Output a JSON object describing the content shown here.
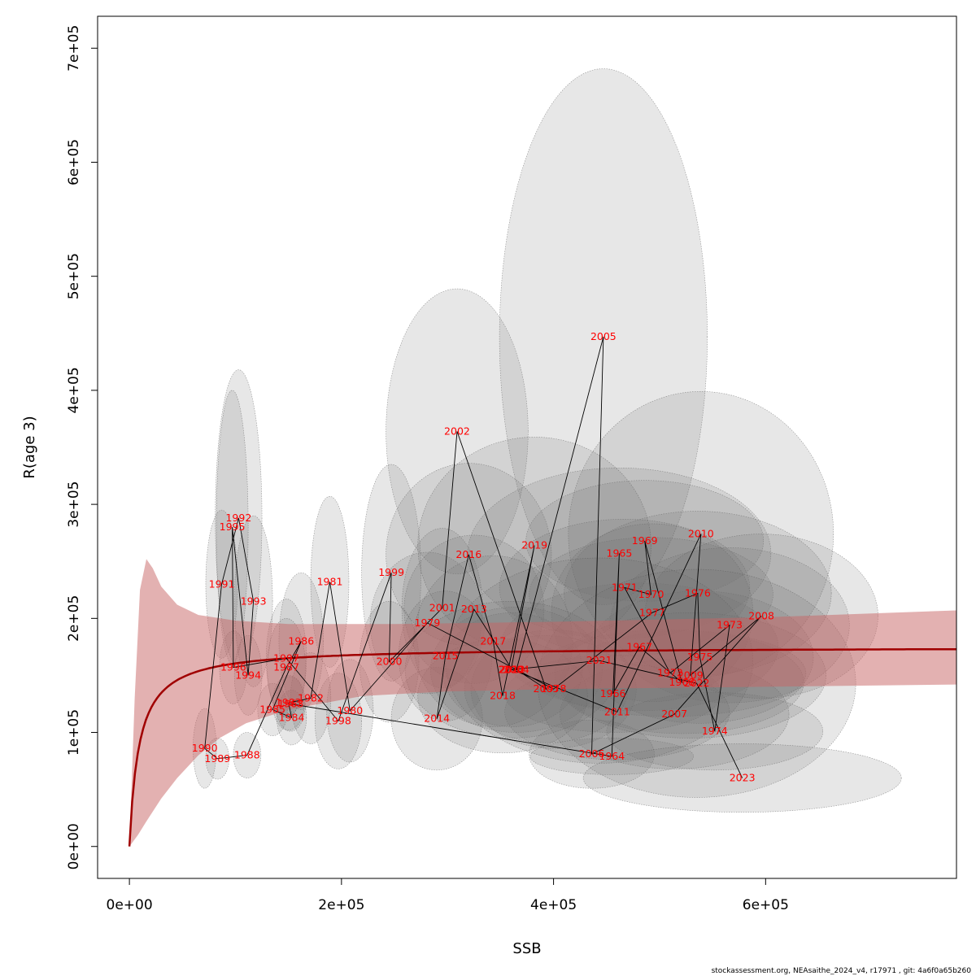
{
  "chart_data": {
    "type": "scatter",
    "title": "",
    "xlabel": "SSB",
    "ylabel": "R(age 3)",
    "xlim": [
      -30000,
      780000
    ],
    "ylim": [
      -28000,
      728000
    ],
    "x_ticks": [
      0,
      200000,
      400000,
      600000
    ],
    "x_tick_labels": [
      "0e+00",
      "2e+05",
      "4e+05",
      "6e+05"
    ],
    "y_ticks": [
      0,
      100000,
      200000,
      300000,
      400000,
      500000,
      600000,
      700000
    ],
    "y_tick_labels": [
      "0e+00",
      "1e+05",
      "2e+05",
      "3e+05",
      "4e+05",
      "5e+05",
      "6e+05",
      "7e+05"
    ],
    "grid": false,
    "colors": {
      "label": "#ff0000",
      "fit_line": "#a00000",
      "fit_band": "#c86464",
      "ellipse_fill": "#6e6e6e",
      "path": "#000000"
    },
    "points": [
      {
        "year": 1963,
        "ssb": 152000,
        "r": 125000,
        "sx": 14000,
        "sy": 24000
      },
      {
        "year": 1964,
        "ssb": 455000,
        "r": 79000,
        "sx": 77000,
        "sy": 16000
      },
      {
        "year": 1965,
        "ssb": 462000,
        "r": 257000,
        "sx": 143000,
        "sy": 75000
      },
      {
        "year": 1966,
        "ssb": 456000,
        "r": 134000,
        "sx": 102000,
        "sy": 34000
      },
      {
        "year": 1967,
        "ssb": 481000,
        "r": 175000,
        "sx": 131000,
        "sy": 56000
      },
      {
        "year": 1968,
        "ssb": 521000,
        "r": 144000,
        "sx": 115000,
        "sy": 45000
      },
      {
        "year": 1969,
        "ssb": 486000,
        "r": 268000,
        "sx": 112000,
        "sy": 53000
      },
      {
        "year": 1970,
        "ssb": 492000,
        "r": 221000,
        "sx": 115000,
        "sy": 50000
      },
      {
        "year": 1971,
        "ssb": 467000,
        "r": 227000,
        "sx": 118000,
        "sy": 60000
      },
      {
        "year": 1972,
        "ssb": 510000,
        "r": 152000,
        "sx": 128000,
        "sy": 38000
      },
      {
        "year": 1973,
        "ssb": 566000,
        "r": 194000,
        "sx": 113000,
        "sy": 68000
      },
      {
        "year": 1974,
        "ssb": 552000,
        "r": 101000,
        "sx": 102000,
        "sy": 34000
      },
      {
        "year": 1975,
        "ssb": 538000,
        "r": 166000,
        "sx": 107000,
        "sy": 58000
      },
      {
        "year": 1976,
        "ssb": 536000,
        "r": 222000,
        "sx": 126000,
        "sy": 72000
      },
      {
        "year": 1977,
        "ssb": 493000,
        "r": 205000,
        "sx": 95000,
        "sy": 78000
      },
      {
        "year": 1978,
        "ssb": 400000,
        "r": 138000,
        "sx": 78000,
        "sy": 52000
      },
      {
        "year": 1979,
        "ssb": 281000,
        "r": 196000,
        "sx": 54000,
        "sy": 62000
      },
      {
        "year": 1980,
        "ssb": 208000,
        "r": 119000,
        "sx": 22000,
        "sy": 45000
      },
      {
        "year": 1981,
        "ssb": 189000,
        "r": 232000,
        "sx": 18000,
        "sy": 75000
      },
      {
        "year": 1982,
        "ssb": 171000,
        "r": 130000,
        "sx": 19000,
        "sy": 40000
      },
      {
        "year": 1983,
        "ssb": 150000,
        "r": 126000,
        "sx": 15000,
        "sy": 24000
      },
      {
        "year": 1984,
        "ssb": 153000,
        "r": 113000,
        "sx": 14000,
        "sy": 24000
      },
      {
        "year": 1985,
        "ssb": 135000,
        "r": 120000,
        "sx": 14000,
        "sy": 23000
      },
      {
        "year": 1986,
        "ssb": 162000,
        "r": 180000,
        "sx": 21000,
        "sy": 60000
      },
      {
        "year": 1987,
        "ssb": 148000,
        "r": 157000,
        "sx": 18000,
        "sy": 43000
      },
      {
        "year": 1988,
        "ssb": 111000,
        "r": 80000,
        "sx": 13000,
        "sy": 20000
      },
      {
        "year": 1989,
        "ssb": 83000,
        "r": 77000,
        "sx": 11000,
        "sy": 18000
      },
      {
        "year": 1990,
        "ssb": 71000,
        "r": 86000,
        "sx": 11000,
        "sy": 35000
      },
      {
        "year": 1991,
        "ssb": 87000,
        "r": 230000,
        "sx": 15000,
        "sy": 65000
      },
      {
        "year": 1992,
        "ssb": 103000,
        "r": 288000,
        "sx": 22000,
        "sy": 130000
      },
      {
        "year": 1993,
        "ssb": 117000,
        "r": 215000,
        "sx": 18000,
        "sy": 75000
      },
      {
        "year": 1994,
        "ssb": 112000,
        "r": 150000,
        "sx": 13000,
        "sy": 35000
      },
      {
        "year": 1995,
        "ssb": 97000,
        "r": 280000,
        "sx": 15000,
        "sy": 120000
      },
      {
        "year": 1996,
        "ssb": 98000,
        "r": 157000,
        "sx": 13000,
        "sy": 32000
      },
      {
        "year": 1997,
        "ssb": 148000,
        "r": 165000,
        "sx": 19000,
        "sy": 52000
      },
      {
        "year": 1998,
        "ssb": 197000,
        "r": 110000,
        "sx": 22000,
        "sy": 42000
      },
      {
        "year": 1999,
        "ssb": 247000,
        "r": 240000,
        "sx": 28000,
        "sy": 95000
      },
      {
        "year": 2000,
        "ssb": 245000,
        "r": 162000,
        "sx": 28000,
        "sy": 53000
      },
      {
        "year": 2001,
        "ssb": 295000,
        "r": 209000,
        "sx": 38000,
        "sy": 70000
      },
      {
        "year": 2002,
        "ssb": 309000,
        "r": 364000,
        "sx": 67000,
        "sy": 125000
      },
      {
        "year": 2003,
        "ssb": 393000,
        "r": 138000,
        "sx": 77000,
        "sy": 47000
      },
      {
        "year": 2004,
        "ssb": 365000,
        "r": 155000,
        "sx": 81000,
        "sy": 55000
      },
      {
        "year": 2005,
        "ssb": 447000,
        "r": 447000,
        "sx": 98000,
        "sy": 235000
      },
      {
        "year": 2006,
        "ssb": 436000,
        "r": 81000,
        "sx": 59000,
        "sy": 30000
      },
      {
        "year": 2007,
        "ssb": 514000,
        "r": 116000,
        "sx": 108000,
        "sy": 48000
      },
      {
        "year": 2008,
        "ssb": 596000,
        "r": 202000,
        "sx": 110000,
        "sy": 72000
      },
      {
        "year": 2009,
        "ssb": 529000,
        "r": 150000,
        "sx": 128000,
        "sy": 55000
      },
      {
        "year": 2010,
        "ssb": 539000,
        "r": 274000,
        "sx": 125000,
        "sy": 125000
      },
      {
        "year": 2011,
        "ssb": 460000,
        "r": 118000,
        "sx": 106000,
        "sy": 42000
      },
      {
        "year": 2012,
        "ssb": 361000,
        "r": 155000,
        "sx": 66000,
        "sy": 50000
      },
      {
        "year": 2013,
        "ssb": 325000,
        "r": 208000,
        "sx": 66000,
        "sy": 65000
      },
      {
        "year": 2014,
        "ssb": 290000,
        "r": 112000,
        "sx": 43000,
        "sy": 45000
      },
      {
        "year": 2015,
        "ssb": 298000,
        "r": 167000,
        "sx": 44000,
        "sy": 57000
      },
      {
        "year": 2016,
        "ssb": 320000,
        "r": 256000,
        "sx": 78000,
        "sy": 80000
      },
      {
        "year": 2017,
        "ssb": 343000,
        "r": 180000,
        "sx": 75000,
        "sy": 75000
      },
      {
        "year": 2018,
        "ssb": 352000,
        "r": 132000,
        "sx": 80000,
        "sy": 50000
      },
      {
        "year": 2019,
        "ssb": 382000,
        "r": 264000,
        "sx": 110000,
        "sy": 95000
      },
      {
        "year": 2020,
        "ssb": 360000,
        "r": 155000,
        "sx": 100000,
        "sy": 60000
      },
      {
        "year": 2021,
        "ssb": 443000,
        "r": 163000,
        "sx": 145000,
        "sy": 90000
      },
      {
        "year": 2022,
        "ssb": 535000,
        "r": 143000,
        "sx": 150000,
        "sy": 100000
      },
      {
        "year": 2023,
        "ssb": 578000,
        "r": 60000,
        "sx": 150000,
        "sy": 30000
      }
    ],
    "fit_curve": {
      "a": 175000,
      "b": 9000,
      "band_upper": [
        [
          0,
          0
        ],
        [
          5000,
          130000
        ],
        [
          10000,
          225000
        ],
        [
          16000,
          252000
        ],
        [
          22000,
          244000
        ],
        [
          30000,
          228000
        ],
        [
          45000,
          212000
        ],
        [
          65000,
          203000
        ],
        [
          100000,
          198000
        ],
        [
          150000,
          195000
        ],
        [
          250000,
          195000
        ],
        [
          400000,
          197000
        ],
        [
          600000,
          201000
        ],
        [
          780000,
          207000
        ]
      ],
      "band_lower": [
        [
          780000,
          142000
        ],
        [
          600000,
          140000
        ],
        [
          400000,
          138000
        ],
        [
          300000,
          136000
        ],
        [
          220000,
          132000
        ],
        [
          150000,
          120000
        ],
        [
          110000,
          108000
        ],
        [
          85000,
          95000
        ],
        [
          65000,
          80000
        ],
        [
          45000,
          60000
        ],
        [
          30000,
          42000
        ],
        [
          16000,
          22000
        ],
        [
          8000,
          10000
        ],
        [
          0,
          0
        ]
      ]
    },
    "footer": "stockassessment.org, NEAsaithe_2024_v4, r17971 , git: 4a6f0a65b260"
  }
}
